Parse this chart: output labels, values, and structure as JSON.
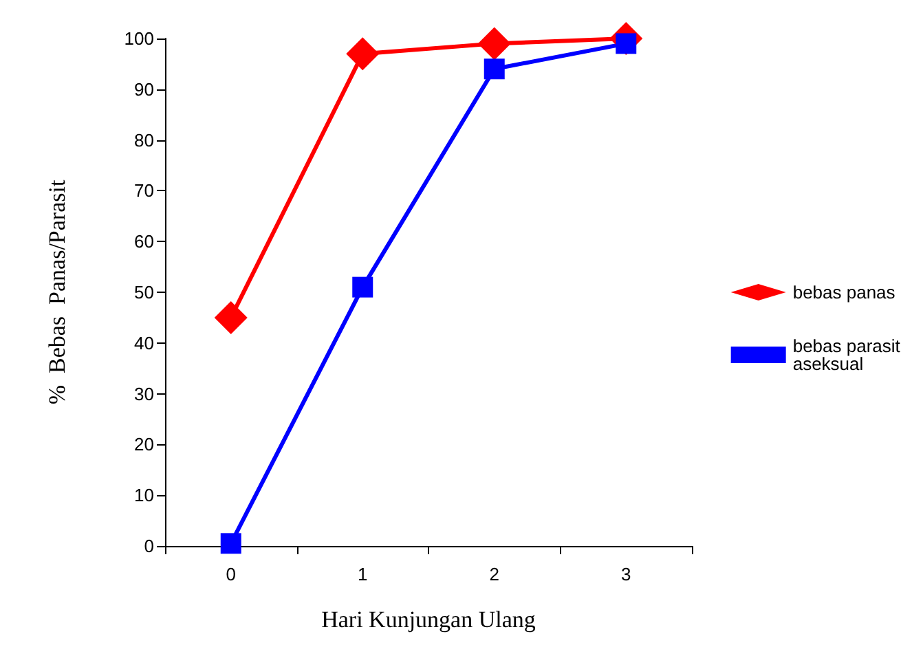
{
  "chart_data": {
    "type": "line",
    "xlabel": "Hari Kunjungan Ulang",
    "ylabel": "%  Bebas  Panas/Parasit",
    "categories": [
      "0",
      "1",
      "2",
      "3"
    ],
    "series": [
      {
        "name": "bebas panas",
        "color": "#ff0000",
        "marker": "diamond",
        "values": [
          45,
          97,
          99,
          100
        ]
      },
      {
        "name": "bebas parasit aseksual",
        "color": "#0000ff",
        "marker": "square",
        "values": [
          0.5,
          51,
          94,
          99
        ]
      }
    ],
    "ylim": [
      0,
      100
    ],
    "yticks": [
      0,
      10,
      20,
      30,
      40,
      50,
      60,
      70,
      80,
      90,
      100
    ],
    "grid": false,
    "legend": "right",
    "line_style": "solid"
  }
}
